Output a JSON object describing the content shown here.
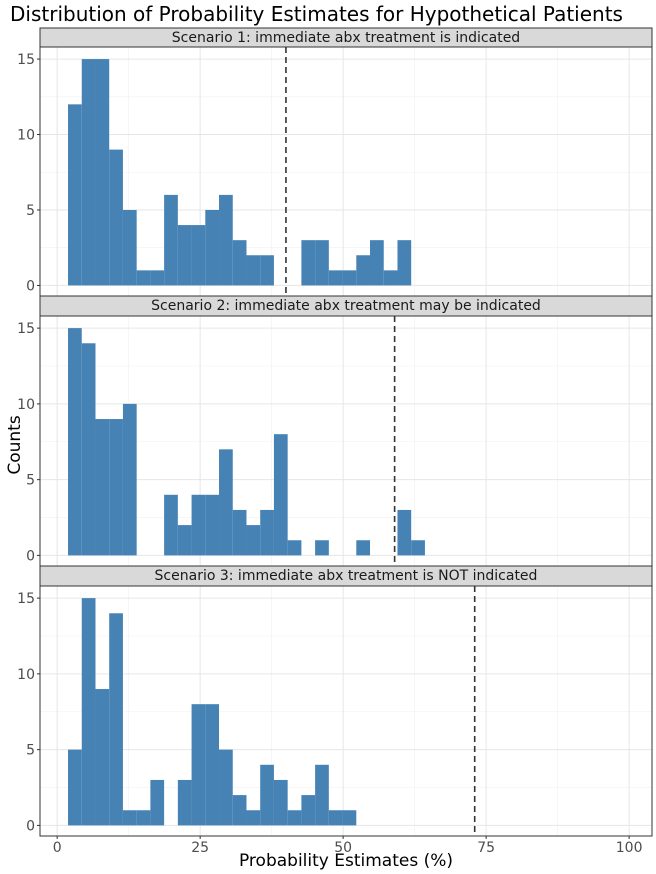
{
  "chart_data": {
    "type": "bar",
    "subtype": "faceted-histogram",
    "title": "Distribution of Probability Estimates for Hypothetical Patients",
    "xlabel": "Probability Estimates (%)",
    "ylabel": "Counts",
    "xlim": [
      -3,
      104
    ],
    "ylim": [
      -0.7,
      15.8
    ],
    "x_ticks": [
      0,
      25,
      50,
      75,
      100
    ],
    "y_ticks": [
      0,
      5,
      10,
      15
    ],
    "bin_width": 2.4,
    "bar_color": "#4682b4",
    "grid": true,
    "facets": [
      {
        "label": "Scenario 1: immediate abx treatment is indicated",
        "threshold": 40,
        "bins": [
          {
            "x": 3.1,
            "count": 12
          },
          {
            "x": 5.5,
            "count": 15
          },
          {
            "x": 7.9,
            "count": 15
          },
          {
            "x": 10.3,
            "count": 9
          },
          {
            "x": 12.7,
            "count": 5
          },
          {
            "x": 15.1,
            "count": 1
          },
          {
            "x": 17.5,
            "count": 1
          },
          {
            "x": 19.9,
            "count": 6
          },
          {
            "x": 22.3,
            "count": 4
          },
          {
            "x": 24.7,
            "count": 4
          },
          {
            "x": 27.1,
            "count": 5
          },
          {
            "x": 29.5,
            "count": 6
          },
          {
            "x": 31.9,
            "count": 3
          },
          {
            "x": 34.3,
            "count": 2
          },
          {
            "x": 36.7,
            "count": 2
          },
          {
            "x": 43.9,
            "count": 3
          },
          {
            "x": 46.3,
            "count": 3
          },
          {
            "x": 48.7,
            "count": 1
          },
          {
            "x": 51.1,
            "count": 1
          },
          {
            "x": 53.5,
            "count": 2
          },
          {
            "x": 55.9,
            "count": 3
          },
          {
            "x": 58.3,
            "count": 1
          },
          {
            "x": 60.7,
            "count": 3
          }
        ]
      },
      {
        "label": "Scenario 2: immediate abx treatment may be indicated",
        "threshold": 59,
        "bins": [
          {
            "x": 3.1,
            "count": 15
          },
          {
            "x": 5.5,
            "count": 14
          },
          {
            "x": 7.9,
            "count": 9
          },
          {
            "x": 10.3,
            "count": 9
          },
          {
            "x": 12.7,
            "count": 10
          },
          {
            "x": 19.9,
            "count": 4
          },
          {
            "x": 22.3,
            "count": 2
          },
          {
            "x": 24.7,
            "count": 4
          },
          {
            "x": 27.1,
            "count": 4
          },
          {
            "x": 29.5,
            "count": 7
          },
          {
            "x": 31.9,
            "count": 3
          },
          {
            "x": 34.3,
            "count": 2
          },
          {
            "x": 36.7,
            "count": 3
          },
          {
            "x": 39.1,
            "count": 8
          },
          {
            "x": 41.5,
            "count": 1
          },
          {
            "x": 46.3,
            "count": 1
          },
          {
            "x": 53.5,
            "count": 1
          },
          {
            "x": 60.7,
            "count": 3
          },
          {
            "x": 63.1,
            "count": 1
          }
        ]
      },
      {
        "label": "Scenario 3: immediate abx treatment is NOT indicated",
        "threshold": 73,
        "bins": [
          {
            "x": 3.1,
            "count": 5
          },
          {
            "x": 5.5,
            "count": 15
          },
          {
            "x": 7.9,
            "count": 9
          },
          {
            "x": 10.3,
            "count": 14
          },
          {
            "x": 12.7,
            "count": 1
          },
          {
            "x": 15.1,
            "count": 1
          },
          {
            "x": 17.5,
            "count": 3
          },
          {
            "x": 22.3,
            "count": 3
          },
          {
            "x": 24.7,
            "count": 8
          },
          {
            "x": 27.1,
            "count": 8
          },
          {
            "x": 29.5,
            "count": 5
          },
          {
            "x": 31.9,
            "count": 2
          },
          {
            "x": 34.3,
            "count": 1
          },
          {
            "x": 36.7,
            "count": 4
          },
          {
            "x": 39.1,
            "count": 3
          },
          {
            "x": 41.5,
            "count": 1
          },
          {
            "x": 43.9,
            "count": 2
          },
          {
            "x": 46.3,
            "count": 4
          },
          {
            "x": 48.7,
            "count": 1
          },
          {
            "x": 51.1,
            "count": 1
          }
        ]
      }
    ]
  }
}
